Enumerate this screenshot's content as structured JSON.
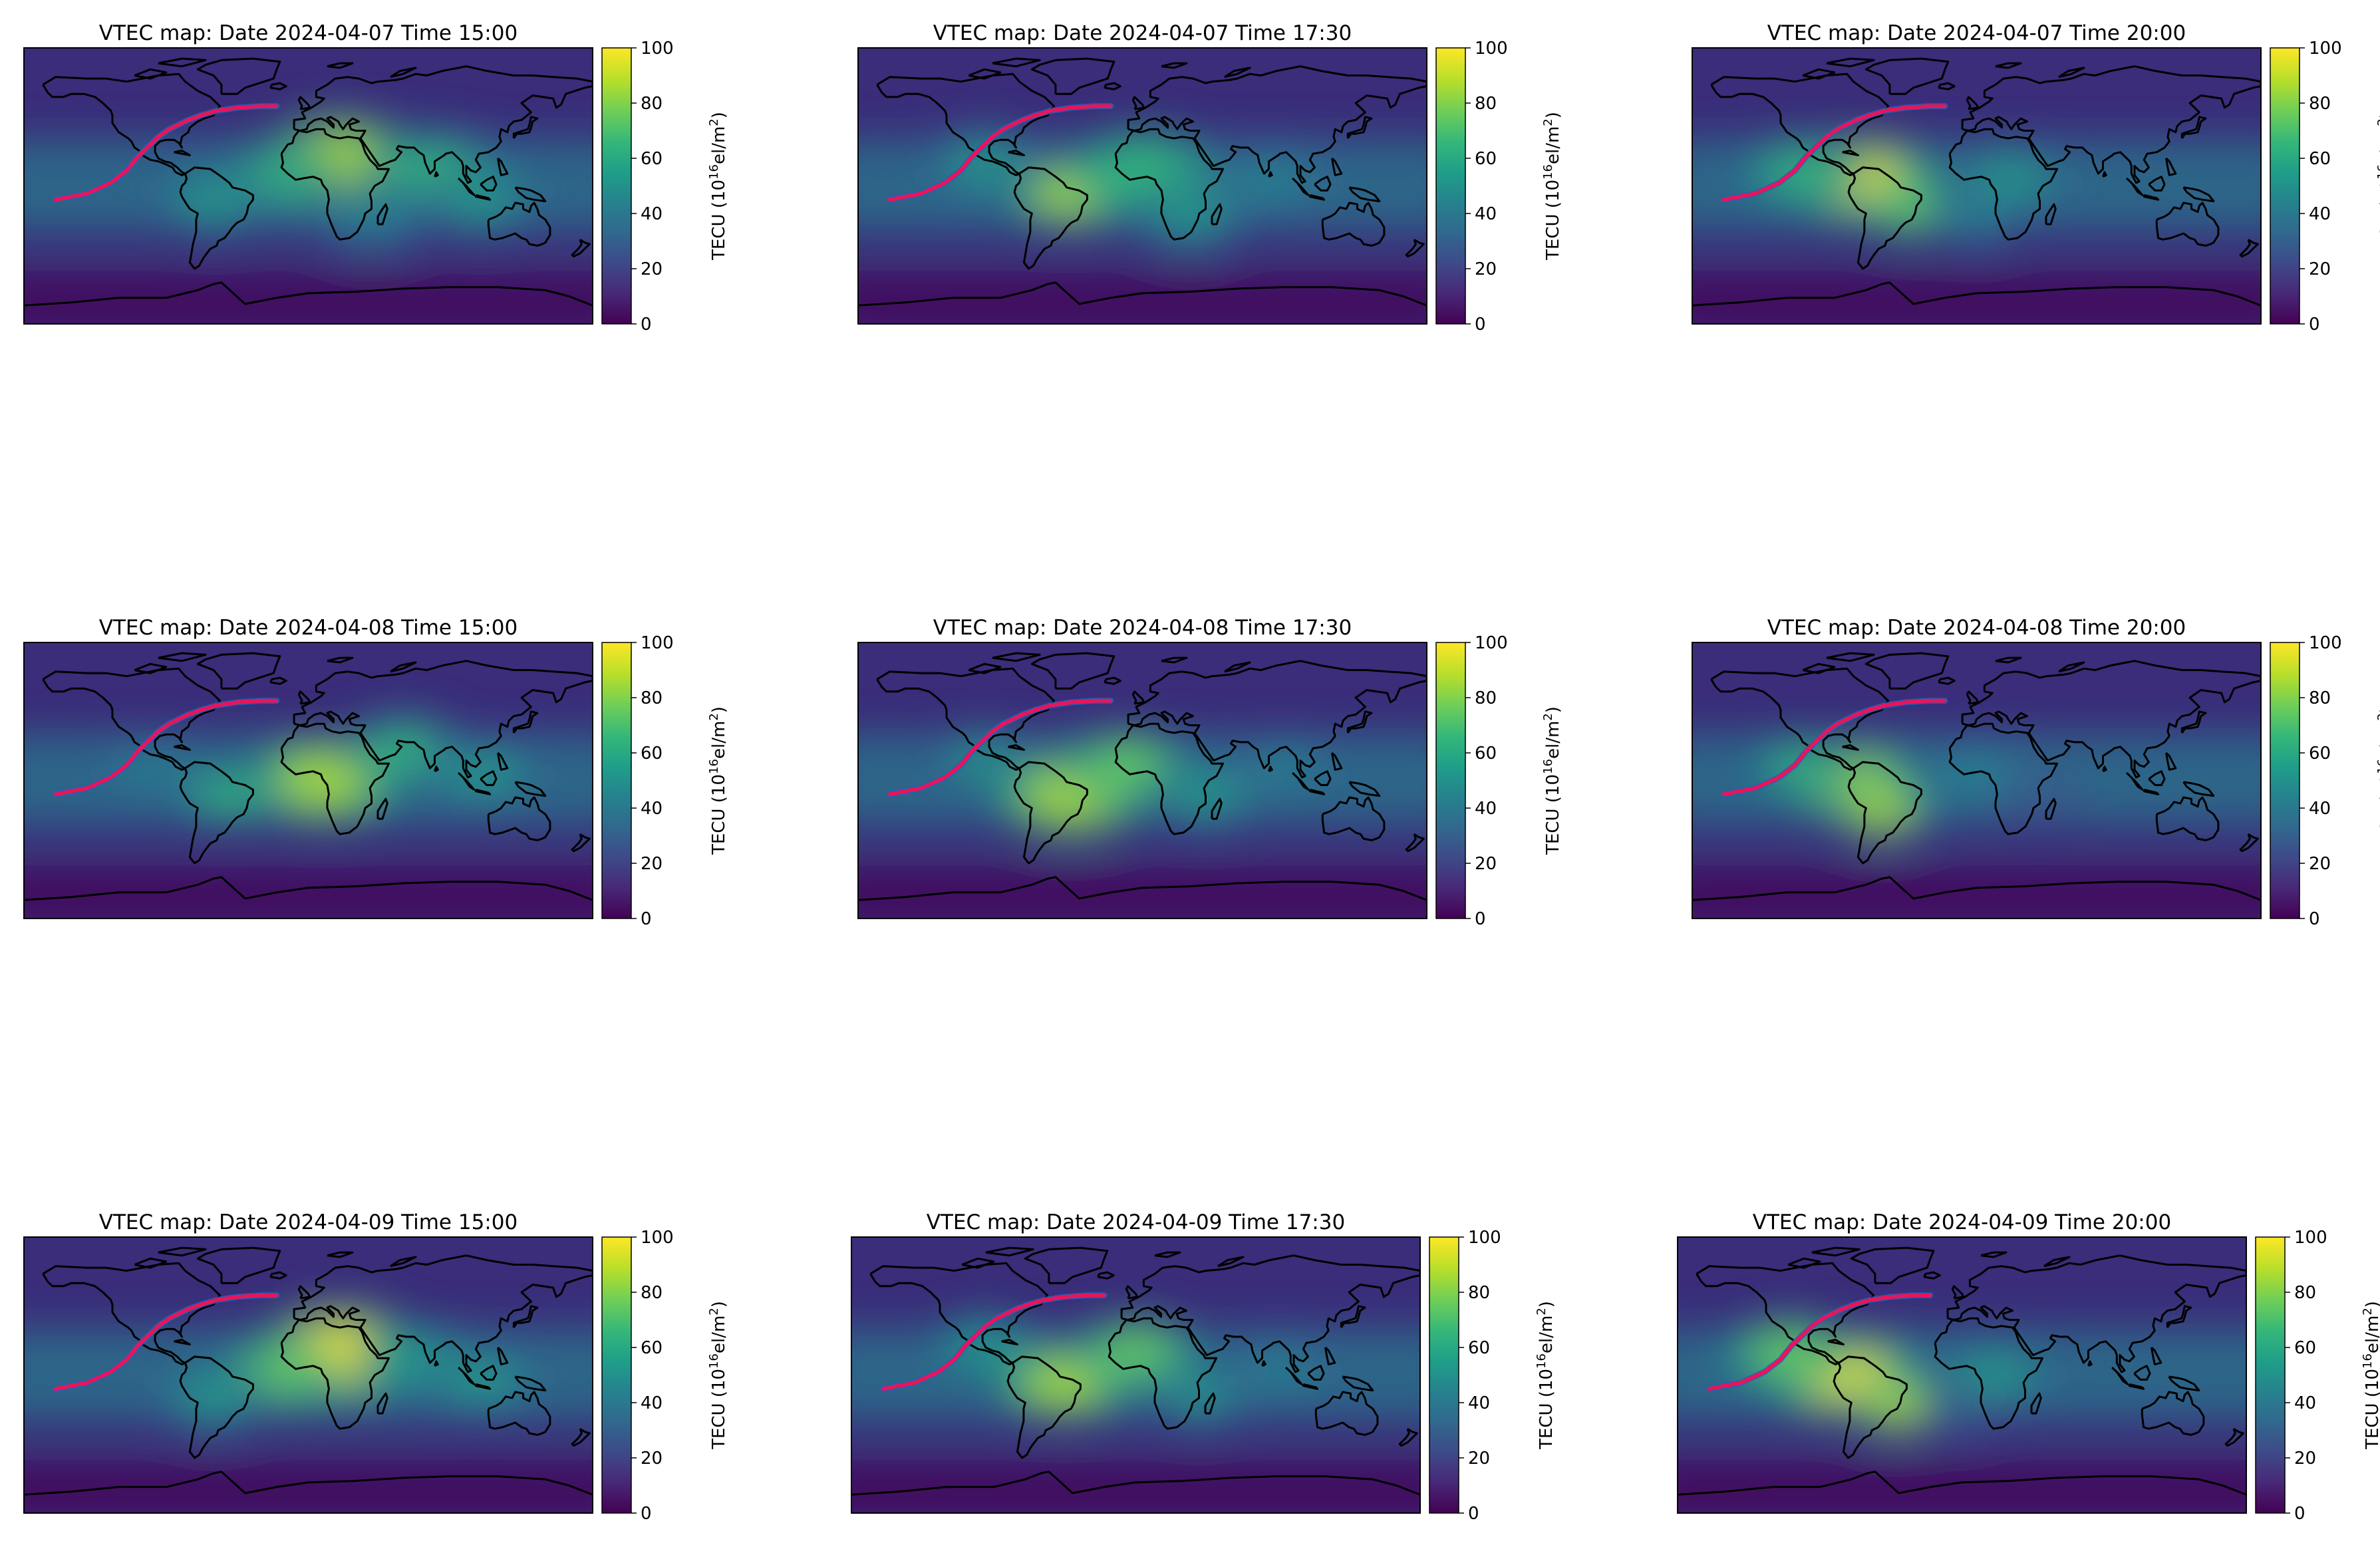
{
  "figure": {
    "colorbar": {
      "ticks": [
        "0",
        "20",
        "40",
        "60",
        "80",
        "100"
      ],
      "label_main": "TECU (10",
      "label_sup1": "16",
      "label_mid": "el/m",
      "label_sup2": "2",
      "label_end": ")",
      "colormap": [
        "#440154",
        "#482878",
        "#3e4a89",
        "#31688e",
        "#26828e",
        "#1f9e89",
        "#35b779",
        "#6ece58",
        "#b5de2b",
        "#fde725"
      ]
    },
    "path_colors": {
      "stroke": "#e8155a",
      "accent": "#1565c0"
    },
    "coast_color": "#000000"
  },
  "chart_data": [
    {
      "type": "heatmap",
      "title": "VTEC map: Date 2024-04-07 Time 15:00",
      "clim": [
        0,
        100
      ]
    },
    {
      "type": "heatmap",
      "title": "VTEC map: Date 2024-04-07 Time 17:30",
      "clim": [
        0,
        100
      ]
    },
    {
      "type": "heatmap",
      "title": "VTEC map: Date 2024-04-07 Time 20:00",
      "clim": [
        0,
        100
      ]
    },
    {
      "type": "heatmap",
      "title": "VTEC map: Date 2024-04-08 Time 15:00",
      "clim": [
        0,
        100
      ]
    },
    {
      "type": "heatmap",
      "title": "VTEC map: Date 2024-04-08 Time 17:30",
      "clim": [
        0,
        100
      ]
    },
    {
      "type": "heatmap",
      "title": "VTEC map: Date 2024-04-08 Time 20:00",
      "clim": [
        0,
        100
      ]
    },
    {
      "type": "heatmap",
      "title": "VTEC map: Date 2024-04-09 Time 15:00",
      "clim": [
        0,
        100
      ]
    },
    {
      "type": "heatmap",
      "title": "VTEC map: Date 2024-04-09 Time 17:30",
      "clim": [
        0,
        100
      ]
    },
    {
      "type": "heatmap",
      "title": "VTEC map: Date 2024-04-09 Time 20:00",
      "clim": [
        0,
        100
      ]
    }
  ]
}
